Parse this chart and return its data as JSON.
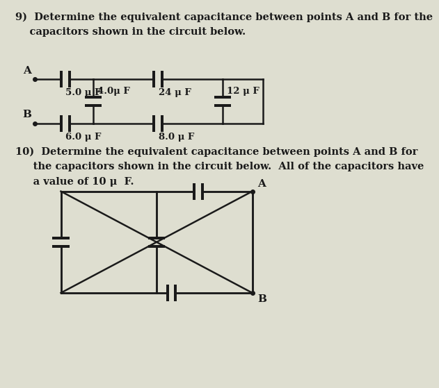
{
  "bg_color": "#deded0",
  "text_color": "#1a1a1a",
  "line_color": "#1a1a1a",
  "title_q9_line1": "9)  Determine the equivalent capacitance between points A and B for the",
  "title_q9_line2": "    capacitors shown in the circuit below.",
  "title_q10_line1": "10)  Determine the equivalent capacitance between points A and B for",
  "title_q10_line2": "     the capacitors shown in the circuit below.  All of the capacitors have",
  "title_q10_line3": "     a value of 10 μ  F.",
  "C1_label": "5.0 μ F",
  "C2_label": "4.0μ F",
  "C3_label": "24 μ F",
  "C4_label": "12 μ F",
  "C5_label": "6.0 μ F",
  "C6_label": "8.0 μ F"
}
